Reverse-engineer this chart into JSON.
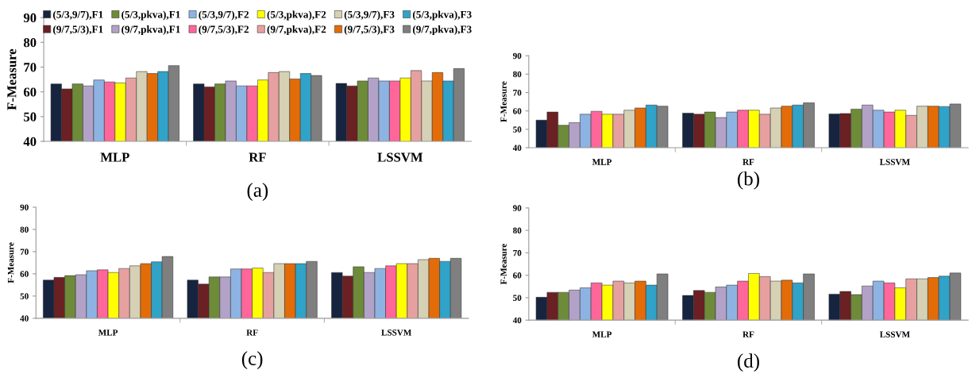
{
  "chart_data": [
    {
      "type": "bar",
      "title": "(a)",
      "ylabel": "F-Measure",
      "categories": [
        "MLP",
        "RF",
        "LSSVM"
      ],
      "ylim": [
        40,
        90
      ],
      "yticks": [
        40,
        50,
        60,
        70,
        80,
        90
      ],
      "grid": false,
      "legend": "top",
      "series": [
        {
          "name": "(5/3,9/7),F1",
          "color": "#17243f",
          "values": [
            63.2,
            63.2,
            63.4
          ]
        },
        {
          "name": "(9/7,5/3),F1",
          "color": "#6b2023",
          "values": [
            61.2,
            62,
            62.4
          ]
        },
        {
          "name": "(5/3,pkva),F1",
          "color": "#6e8b3a",
          "values": [
            63.2,
            63.2,
            64.4
          ]
        },
        {
          "name": "(9/7,pkva),F1",
          "color": "#b3a2c7",
          "values": [
            62.4,
            64.4,
            65.6
          ]
        },
        {
          "name": "(5/3,9/7),F2",
          "color": "#8db3e2",
          "values": [
            64.8,
            62.4,
            64.4
          ]
        },
        {
          "name": "(9/7,5/3),F2",
          "color": "#ff6699",
          "values": [
            64,
            62.4,
            64.4
          ]
        },
        {
          "name": "(5/3,pkva),F2",
          "color": "#ffff00",
          "values": [
            63.6,
            64.8,
            65.6
          ]
        },
        {
          "name": "(9/7,pkva),F2",
          "color": "#e6a0a0",
          "values": [
            65.6,
            67.8,
            68.6
          ]
        },
        {
          "name": "(5/3,9/7),F3",
          "color": "#d6d0b4",
          "values": [
            68.2,
            68.2,
            64.4
          ]
        },
        {
          "name": "(9/7,5/3),F3",
          "color": "#e36c09",
          "values": [
            67.4,
            65.2,
            67.8
          ]
        },
        {
          "name": "(5/3,pkva),F3",
          "color": "#31a2c8",
          "values": [
            68.2,
            67.4,
            64.4
          ]
        },
        {
          "name": "(9/7,pkva),F3",
          "color": "#7f7f7f",
          "values": [
            70.6,
            66.6,
            69.4
          ]
        }
      ]
    },
    {
      "type": "bar",
      "title": "(b)",
      "ylabel": "F-Measure",
      "categories": [
        "MLP",
        "RF",
        "LSSVM"
      ],
      "ylim": [
        40,
        90
      ],
      "yticks": [
        40,
        50,
        60,
        70,
        80,
        90
      ],
      "grid": false,
      "series": [
        {
          "color": "#17243f",
          "values": [
            55,
            58.8,
            58.4
          ]
        },
        {
          "color": "#6b2023",
          "values": [
            59.4,
            58.2,
            58.6
          ]
        },
        {
          "color": "#6e8b3a",
          "values": [
            52.2,
            59.4,
            61
          ]
        },
        {
          "color": "#b3a2c7",
          "values": [
            53.6,
            56.4,
            63.2
          ]
        },
        {
          "color": "#8db3e2",
          "values": [
            58.2,
            59.4,
            60.4
          ]
        },
        {
          "color": "#ff6699",
          "values": [
            59.8,
            60.4,
            59.4
          ]
        },
        {
          "color": "#ffff00",
          "values": [
            58.2,
            60.4,
            60.4
          ]
        },
        {
          "color": "#e6a0a0",
          "values": [
            58.2,
            58.2,
            57.6
          ]
        },
        {
          "color": "#d6d0b4",
          "values": [
            60.4,
            61.6,
            62.6
          ]
        },
        {
          "color": "#e36c09",
          "values": [
            61.6,
            62.6,
            62.6
          ]
        },
        {
          "color": "#31a2c8",
          "values": [
            63.2,
            63.2,
            62.4
          ]
        },
        {
          "color": "#7f7f7f",
          "values": [
            62.6,
            64.4,
            63.8
          ]
        }
      ]
    },
    {
      "type": "bar",
      "title": "(c)",
      "ylabel": "F-Measure",
      "categories": [
        "MLP",
        "RF",
        "LSSVM"
      ],
      "ylim": [
        40,
        90
      ],
      "yticks": [
        40,
        50,
        60,
        70,
        80,
        90
      ],
      "grid": false,
      "series": [
        {
          "color": "#17243f",
          "values": [
            57.2,
            57.2,
            60.6
          ]
        },
        {
          "color": "#6b2023",
          "values": [
            58.4,
            55.4,
            59
          ]
        },
        {
          "color": "#6e8b3a",
          "values": [
            59.2,
            58.6,
            63.2
          ]
        },
        {
          "color": "#b3a2c7",
          "values": [
            59.6,
            58.6,
            60.6
          ]
        },
        {
          "color": "#8db3e2",
          "values": [
            61.4,
            62.2,
            62.4
          ]
        },
        {
          "color": "#ff6699",
          "values": [
            61.8,
            62.2,
            63.6
          ]
        },
        {
          "color": "#ffff00",
          "values": [
            60.6,
            62.6,
            64.6
          ]
        },
        {
          "color": "#e6a0a0",
          "values": [
            62.4,
            60.6,
            64.6
          ]
        },
        {
          "color": "#d6d0b4",
          "values": [
            63.6,
            64.6,
            66.4
          ]
        },
        {
          "color": "#e36c09",
          "values": [
            64.6,
            64.6,
            67
          ]
        },
        {
          "color": "#31a2c8",
          "values": [
            65.4,
            64.6,
            65.6
          ]
        },
        {
          "color": "#7f7f7f",
          "values": [
            67.8,
            65.6,
            67
          ]
        }
      ]
    },
    {
      "type": "bar",
      "title": "(d)",
      "ylabel": "F-Measure",
      "categories": [
        "MLP",
        "RF",
        "LSSVM"
      ],
      "ylim": [
        40,
        90
      ],
      "yticks": [
        40,
        50,
        60,
        70,
        80,
        90
      ],
      "grid": false,
      "series": [
        {
          "color": "#17243f",
          "values": [
            50.2,
            51,
            51.6
          ]
        },
        {
          "color": "#6b2023",
          "values": [
            52.4,
            53.2,
            52.8
          ]
        },
        {
          "color": "#6e8b3a",
          "values": [
            52.4,
            52.4,
            51.4
          ]
        },
        {
          "color": "#b3a2c7",
          "values": [
            53.4,
            54.8,
            55.2
          ]
        },
        {
          "color": "#8db3e2",
          "values": [
            54.4,
            55.6,
            57.4
          ]
        },
        {
          "color": "#ff6699",
          "values": [
            56.6,
            57.4,
            56.6
          ]
        },
        {
          "color": "#ffff00",
          "values": [
            55.6,
            60.8,
            54.4
          ]
        },
        {
          "color": "#e6a0a0",
          "values": [
            57.4,
            59.4,
            58.4
          ]
        },
        {
          "color": "#d6d0b4",
          "values": [
            56.6,
            57.4,
            58.4
          ]
        },
        {
          "color": "#e36c09",
          "values": [
            57.4,
            57.8,
            59
          ]
        },
        {
          "color": "#31a2c8",
          "values": [
            55.6,
            56.6,
            59.6
          ]
        },
        {
          "color": "#7f7f7f",
          "values": [
            60.6,
            60.6,
            61
          ]
        }
      ]
    }
  ]
}
